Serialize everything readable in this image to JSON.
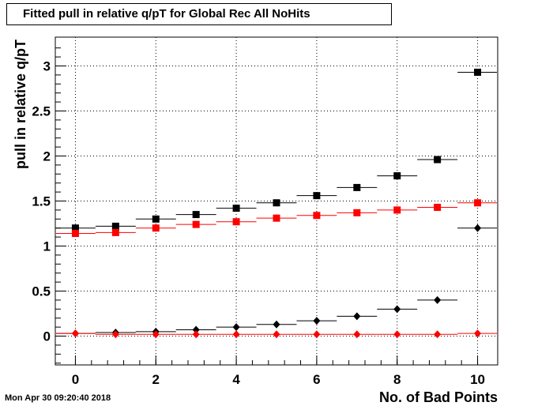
{
  "title": "Fitted pull in relative q/pT for Global Rec All NoHits",
  "timestamp": "Mon Apr 30 09:20:40 2018",
  "chart_data": {
    "type": "scatter",
    "title": "Fitted pull in relative q/pT for Global Rec All NoHits",
    "xlabel": "No. of Bad Points",
    "ylabel": "pull in relative q/pT",
    "xlim": [
      -0.5,
      10.5
    ],
    "ylim": [
      -0.32,
      3.32
    ],
    "xticks": [
      0,
      2,
      4,
      6,
      8,
      10
    ],
    "xtick_labels": [
      "0",
      "2",
      "4",
      "6",
      "8",
      "10"
    ],
    "yticks": [
      0,
      0.5,
      1,
      1.5,
      2,
      2.5,
      3
    ],
    "ytick_labels": [
      "0",
      "0.5",
      "1",
      "1.5",
      "2",
      "2.5",
      "3"
    ],
    "grid": true,
    "legend": "none",
    "x": [
      0,
      1,
      2,
      3,
      4,
      5,
      6,
      7,
      8,
      9,
      10
    ],
    "series": [
      {
        "marker": "square",
        "color": "#000000",
        "values": [
          1.2,
          1.22,
          1.3,
          1.35,
          1.42,
          1.48,
          1.56,
          1.65,
          1.78,
          1.96,
          2.93
        ]
      },
      {
        "marker": "square",
        "color": "#ff0000",
        "values": [
          1.14,
          1.15,
          1.2,
          1.24,
          1.27,
          1.31,
          1.34,
          1.37,
          1.4,
          1.43,
          1.48
        ]
      },
      {
        "marker": "diamond",
        "color": "#000000",
        "values": [
          0.03,
          0.04,
          0.05,
          0.07,
          0.1,
          0.13,
          0.17,
          0.22,
          0.3,
          0.4,
          1.2
        ]
      },
      {
        "marker": "diamond",
        "color": "#ff0000",
        "values": [
          0.03,
          0.02,
          0.02,
          0.02,
          0.02,
          0.02,
          0.02,
          0.02,
          0.02,
          0.02,
          0.03
        ]
      }
    ]
  }
}
